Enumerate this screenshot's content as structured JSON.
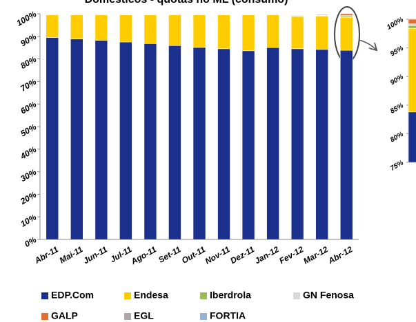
{
  "chart_data": [
    {
      "type": "stacked_bar",
      "title": "Domésticos - quotas no ML (consumo)",
      "categories": [
        "Abr-11",
        "Mai-11",
        "Jun-11",
        "Jul-11",
        "Ago-11",
        "Set-11",
        "Out-11",
        "Nov-11",
        "Dez-11",
        "Jan-12",
        "Fev-12",
        "Mar-12",
        "Abr-12"
      ],
      "series": [
        {
          "name": "EDP.Com",
          "color": "#1b2f8c",
          "values": [
            89.5,
            88.8,
            88.2,
            87.5,
            86.8,
            85.9,
            85.1,
            84.5,
            83.6,
            85.0,
            84.5,
            84.2,
            83.8
          ]
        },
        {
          "name": "Endesa",
          "color": "#ffcc00",
          "values": [
            10.0,
            10.7,
            11.3,
            12.0,
            12.7,
            13.6,
            14.4,
            15.0,
            15.9,
            14.5,
            14.3,
            14.8,
            14.6
          ]
        },
        {
          "name": "Iberdrola",
          "color": "#9bbb59",
          "values": [
            0,
            0,
            0,
            0,
            0,
            0,
            0,
            0,
            0,
            0,
            0.3,
            0.2,
            0.5
          ]
        },
        {
          "name": "GN Fenosa",
          "color": "#d9d9d9",
          "values": [
            0,
            0,
            0,
            0,
            0,
            0,
            0,
            0,
            0,
            0,
            0.3,
            0.2,
            0.3
          ]
        },
        {
          "name": "GALP",
          "color": "#e46c2e",
          "values": [
            0,
            0,
            0,
            0,
            0,
            0,
            0,
            0,
            0,
            0,
            0,
            0.3,
            0.8
          ]
        },
        {
          "name": "EGL",
          "color": "#b0a8a8",
          "values": [
            0,
            0,
            0,
            0,
            0,
            0,
            0,
            0,
            0,
            0,
            0,
            0,
            0
          ]
        },
        {
          "name": "FORTIA",
          "color": "#95b3d7",
          "values": [
            0,
            0,
            0,
            0,
            0,
            0,
            0,
            0,
            0,
            0,
            0,
            0,
            0
          ]
        }
      ],
      "ylim": [
        0,
        100
      ],
      "yticks": [
        {
          "value": 0,
          "label": "0%"
        },
        {
          "value": 10,
          "label": "10%"
        },
        {
          "value": 20,
          "label": "20%"
        },
        {
          "value": 30,
          "label": "30%"
        },
        {
          "value": 40,
          "label": "40%"
        },
        {
          "value": 50,
          "label": "50%"
        },
        {
          "value": 60,
          "label": "60%"
        },
        {
          "value": 70,
          "label": "70%"
        },
        {
          "value": 80,
          "label": "80%"
        },
        {
          "value": 90,
          "label": "90%"
        },
        {
          "value": 100,
          "label": "100%"
        }
      ]
    },
    {
      "type": "zoom",
      "ylim": [
        75,
        100
      ],
      "yticks": [
        {
          "value": 75,
          "label": "75%"
        },
        {
          "value": 80,
          "label": "80%"
        },
        {
          "value": 85,
          "label": "85%"
        },
        {
          "value": 90,
          "label": "90%"
        },
        {
          "value": 95,
          "label": "95%"
        },
        {
          "value": 100,
          "label": "100%"
        }
      ]
    }
  ]
}
